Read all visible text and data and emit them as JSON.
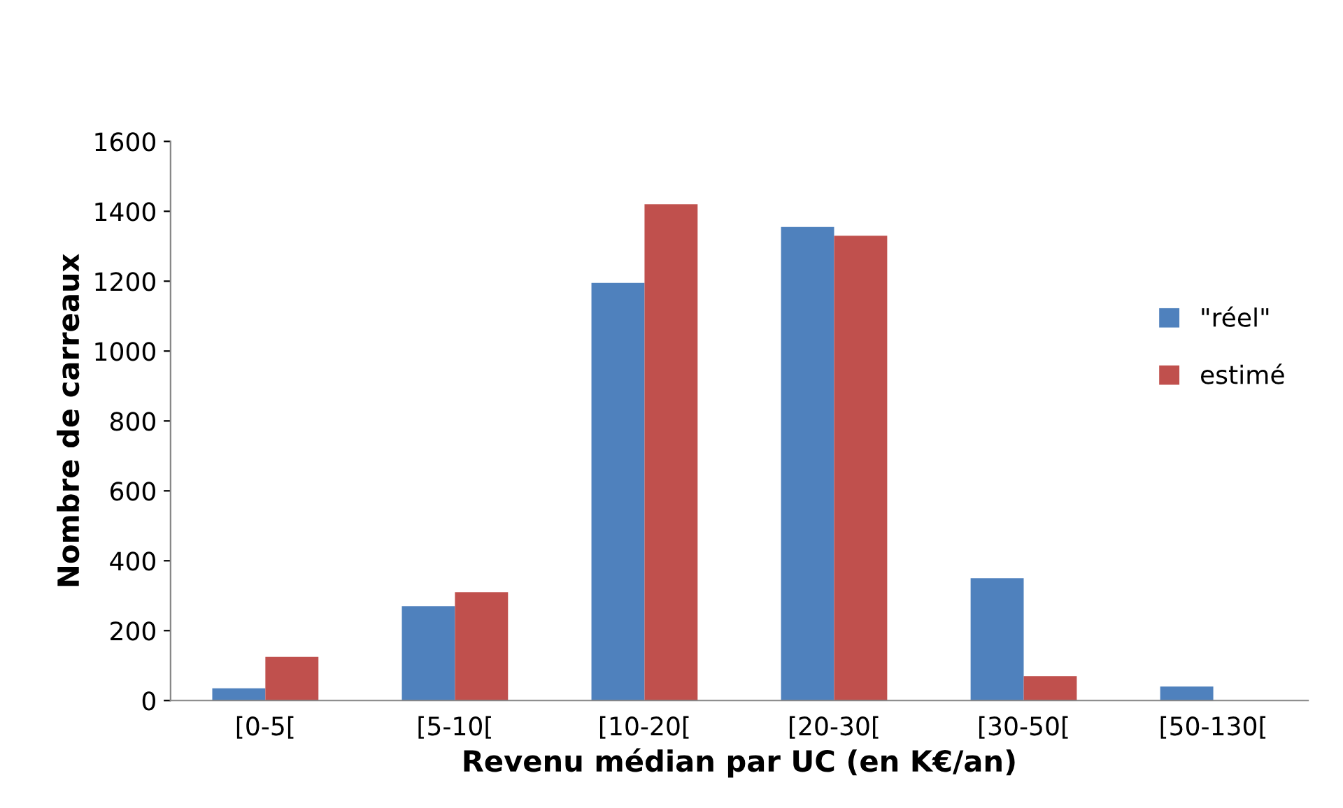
{
  "chart_data": {
    "type": "bar",
    "xlabel": "Revenu médian par UC (en K€/an)",
    "ylabel": "Nombre de carreaux",
    "categories": [
      "[0-5[",
      "[5-10[",
      "[10-20[",
      "[20-30[",
      "[30-50[",
      "[50-130["
    ],
    "series": [
      {
        "name": "\"réel\"",
        "color": "#4f81bd",
        "values": [
          35,
          270,
          1195,
          1355,
          350,
          40
        ]
      },
      {
        "name": "estimé",
        "color": "#c0504d",
        "values": [
          125,
          310,
          1420,
          1330,
          70,
          0
        ]
      }
    ],
    "ylim": [
      0,
      1600
    ],
    "yticks": [
      0,
      200,
      400,
      600,
      800,
      1000,
      1200,
      1400,
      1600
    ],
    "grid": false,
    "legend": "right"
  }
}
